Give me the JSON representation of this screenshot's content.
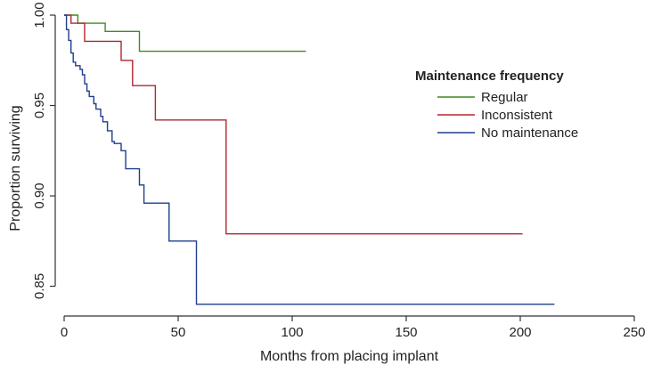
{
  "chart_data": {
    "type": "line",
    "step": true,
    "xlabel": "Months from placing implant",
    "ylabel": "Proportion surviving",
    "xlim": [
      0,
      250
    ],
    "ylim": [
      0.835,
      1.0
    ],
    "xticks": [
      0,
      50,
      100,
      150,
      200,
      250
    ],
    "xtick_labels": [
      "0",
      "50",
      "100",
      "150",
      "200",
      "250"
    ],
    "yticks": [
      0.85,
      0.9,
      0.95,
      1.0
    ],
    "ytick_labels": [
      "0.85",
      "0.90",
      "0.95",
      "1.00"
    ],
    "grid": false,
    "legend": {
      "title": "Maintenance frequency",
      "position": "top-right",
      "entries": [
        "Regular",
        "Inconsistent",
        "No maintenance"
      ]
    },
    "series": [
      {
        "name": "Regular",
        "color": "#3d8c1c",
        "x": [
          0,
          6,
          18,
          33,
          106
        ],
        "y": [
          1.0,
          0.9955,
          0.991,
          0.98,
          0.98
        ]
      },
      {
        "name": "Inconsistent",
        "color": "#b0262e",
        "x": [
          0,
          3,
          9,
          25,
          30,
          40,
          71,
          201
        ],
        "y": [
          1.0,
          0.9955,
          0.9855,
          0.975,
          0.961,
          0.942,
          0.879,
          0.879
        ]
      },
      {
        "name": "No maintenance",
        "color": "#1f3e8c",
        "x": [
          0,
          1,
          2,
          3,
          4,
          5,
          7,
          8,
          9,
          10,
          11,
          13,
          14,
          16,
          17,
          19,
          21,
          22,
          25,
          27,
          29,
          33,
          35,
          46,
          58,
          215
        ],
        "y": [
          1.0,
          0.992,
          0.986,
          0.979,
          0.974,
          0.972,
          0.97,
          0.967,
          0.962,
          0.958,
          0.955,
          0.951,
          0.948,
          0.944,
          0.941,
          0.936,
          0.93,
          0.929,
          0.925,
          0.915,
          0.915,
          0.906,
          0.896,
          0.875,
          0.84,
          0.84
        ]
      }
    ]
  }
}
